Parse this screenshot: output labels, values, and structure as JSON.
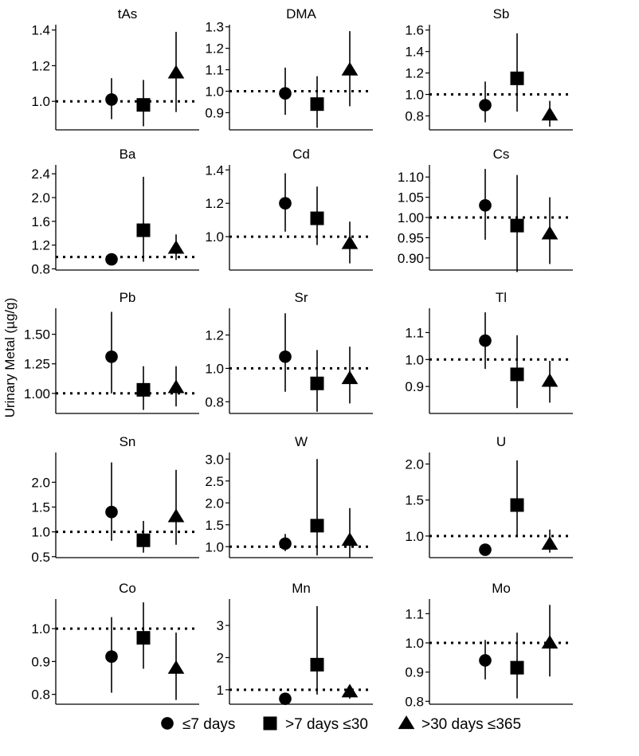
{
  "ylabel": "Urinary Metal (µg/g)",
  "legend": {
    "placement": "bottom",
    "items": [
      {
        "label": "≤7 days",
        "shape": "circle"
      },
      {
        "label": ">7 days ≤30",
        "shape": "square"
      },
      {
        "label": ">30 days ≤365",
        "shape": "triangle"
      }
    ]
  },
  "chart_data": [
    {
      "type": "scatter",
      "title": "tAs",
      "ylim": [
        0.84,
        1.43
      ],
      "yticks": [
        "1.0",
        "1.2",
        "1.4"
      ],
      "reference": 1.0,
      "points": [
        {
          "est": 1.01,
          "lo": 0.9,
          "hi": 1.13
        },
        {
          "est": 0.98,
          "lo": 0.86,
          "hi": 1.12
        },
        {
          "est": 1.16,
          "lo": 0.94,
          "hi": 1.39
        }
      ]
    },
    {
      "type": "scatter",
      "title": "DMA",
      "ylim": [
        0.82,
        1.31
      ],
      "yticks": [
        "0.9",
        "1.0",
        "1.1",
        "1.2",
        "1.3"
      ],
      "reference": 1.0,
      "points": [
        {
          "est": 0.99,
          "lo": 0.89,
          "hi": 1.11
        },
        {
          "est": 0.94,
          "lo": 0.83,
          "hi": 1.07
        },
        {
          "est": 1.1,
          "lo": 0.93,
          "hi": 1.28
        }
      ]
    },
    {
      "type": "scatter",
      "title": "Sb",
      "ylim": [
        0.67,
        1.65
      ],
      "yticks": [
        "0.8",
        "1.0",
        "1.2",
        "1.4",
        "1.6"
      ],
      "reference": 1.0,
      "points": [
        {
          "est": 0.9,
          "lo": 0.74,
          "hi": 1.12
        },
        {
          "est": 1.15,
          "lo": 0.84,
          "hi": 1.57
        },
        {
          "est": 0.81,
          "lo": 0.7,
          "hi": 0.94
        }
      ]
    },
    {
      "type": "scatter",
      "title": "Ba",
      "ylim": [
        0.78,
        2.55
      ],
      "yticks": [
        "0.8",
        "1.2",
        "1.6",
        "2.0",
        "2.4"
      ],
      "reference": 1.0,
      "points": [
        {
          "est": 0.96,
          "lo": 0.9,
          "hi": 1.02
        },
        {
          "est": 1.45,
          "lo": 0.92,
          "hi": 2.35
        },
        {
          "est": 1.15,
          "lo": 0.95,
          "hi": 1.38
        }
      ]
    },
    {
      "type": "scatter",
      "title": "Cd",
      "ylim": [
        0.8,
        1.43
      ],
      "yticks": [
        "1.0",
        "1.2",
        "1.4"
      ],
      "reference": 1.0,
      "points": [
        {
          "est": 1.2,
          "lo": 1.03,
          "hi": 1.38
        },
        {
          "est": 1.11,
          "lo": 0.95,
          "hi": 1.3
        },
        {
          "est": 0.96,
          "lo": 0.84,
          "hi": 1.09
        }
      ]
    },
    {
      "type": "scatter",
      "title": "Cs",
      "ylim": [
        0.87,
        1.13
      ],
      "yticks": [
        "0.90",
        "0.95",
        "1.00",
        "1.05",
        "1.10"
      ],
      "reference": 1.0,
      "points": [
        {
          "est": 1.03,
          "lo": 0.945,
          "hi": 1.12
        },
        {
          "est": 0.98,
          "lo": 0.865,
          "hi": 1.105
        },
        {
          "est": 0.96,
          "lo": 0.885,
          "hi": 1.05
        }
      ]
    },
    {
      "type": "scatter",
      "title": "Pb",
      "ylim": [
        0.83,
        1.72
      ],
      "yticks": [
        "1.00",
        "1.25",
        "1.50"
      ],
      "reference": 1.0,
      "points": [
        {
          "est": 1.31,
          "lo": 1.0,
          "hi": 1.69
        },
        {
          "est": 1.03,
          "lo": 0.86,
          "hi": 1.23
        },
        {
          "est": 1.05,
          "lo": 0.89,
          "hi": 1.23
        }
      ]
    },
    {
      "type": "scatter",
      "title": "Sr",
      "ylim": [
        0.73,
        1.36
      ],
      "yticks": [
        "0.8",
        "1.0",
        "1.2"
      ],
      "reference": 1.0,
      "points": [
        {
          "est": 1.07,
          "lo": 0.86,
          "hi": 1.33
        },
        {
          "est": 0.91,
          "lo": 0.74,
          "hi": 1.11
        },
        {
          "est": 0.94,
          "lo": 0.79,
          "hi": 1.13
        }
      ]
    },
    {
      "type": "scatter",
      "title": "Tl",
      "ylim": [
        0.8,
        1.19
      ],
      "yticks": [
        "0.9",
        "1.0",
        "1.1"
      ],
      "reference": 1.0,
      "points": [
        {
          "est": 1.07,
          "lo": 0.965,
          "hi": 1.175
        },
        {
          "est": 0.945,
          "lo": 0.82,
          "hi": 1.09
        },
        {
          "est": 0.92,
          "lo": 0.84,
          "hi": 0.995
        }
      ]
    },
    {
      "type": "scatter",
      "title": "Sn",
      "ylim": [
        0.48,
        2.6
      ],
      "yticks": [
        "0.5",
        "1.0",
        "1.5",
        "2.0"
      ],
      "reference": 1.0,
      "points": [
        {
          "est": 1.4,
          "lo": 0.82,
          "hi": 2.4
        },
        {
          "est": 0.83,
          "lo": 0.58,
          "hi": 1.22
        },
        {
          "est": 1.31,
          "lo": 0.74,
          "hi": 2.25
        }
      ]
    },
    {
      "type": "scatter",
      "title": "W",
      "ylim": [
        0.75,
        3.15
      ],
      "yticks": [
        "1.0",
        "1.5",
        "2.0",
        "2.5",
        "3.0"
      ],
      "reference": 1.0,
      "points": [
        {
          "est": 1.07,
          "lo": 0.9,
          "hi": 1.29
        },
        {
          "est": 1.48,
          "lo": 0.8,
          "hi": 3.0
        },
        {
          "est": 1.15,
          "lo": 0.75,
          "hi": 1.88
        }
      ]
    },
    {
      "type": "scatter",
      "title": "U",
      "ylim": [
        0.7,
        2.16
      ],
      "yticks": [
        "1.0",
        "1.5",
        "2.0"
      ],
      "reference": 1.0,
      "points": [
        {
          "est": 0.81,
          "lo": 0.74,
          "hi": 0.87
        },
        {
          "est": 1.43,
          "lo": 1.0,
          "hi": 2.05
        },
        {
          "est": 0.89,
          "lo": 0.77,
          "hi": 1.09
        }
      ]
    },
    {
      "type": "scatter",
      "title": "Co",
      "ylim": [
        0.77,
        1.09
      ],
      "yticks": [
        "0.8",
        "0.9",
        "1.0"
      ],
      "reference": 1.0,
      "points": [
        {
          "est": 0.915,
          "lo": 0.805,
          "hi": 1.035
        },
        {
          "est": 0.972,
          "lo": 0.878,
          "hi": 1.08
        },
        {
          "est": 0.88,
          "lo": 0.783,
          "hi": 0.988
        }
      ]
    },
    {
      "type": "scatter",
      "title": "Mn",
      "ylim": [
        0.55,
        3.82
      ],
      "yticks": [
        "1",
        "2",
        "3"
      ],
      "reference": 1.0,
      "points": [
        {
          "est": 0.72,
          "lo": 0.62,
          "hi": 0.82
        },
        {
          "est": 1.78,
          "lo": 0.85,
          "hi": 3.6
        },
        {
          "est": 0.94,
          "lo": 0.72,
          "hi": 1.14
        }
      ]
    },
    {
      "type": "scatter",
      "title": "Mo",
      "ylim": [
        0.79,
        1.15
      ],
      "yticks": [
        "0.8",
        "0.9",
        "1.0",
        "1.1"
      ],
      "reference": 1.0,
      "points": [
        {
          "est": 0.94,
          "lo": 0.875,
          "hi": 1.01
        },
        {
          "est": 0.915,
          "lo": 0.81,
          "hi": 1.035
        },
        {
          "est": 1.0,
          "lo": 0.885,
          "hi": 1.13
        }
      ]
    }
  ]
}
